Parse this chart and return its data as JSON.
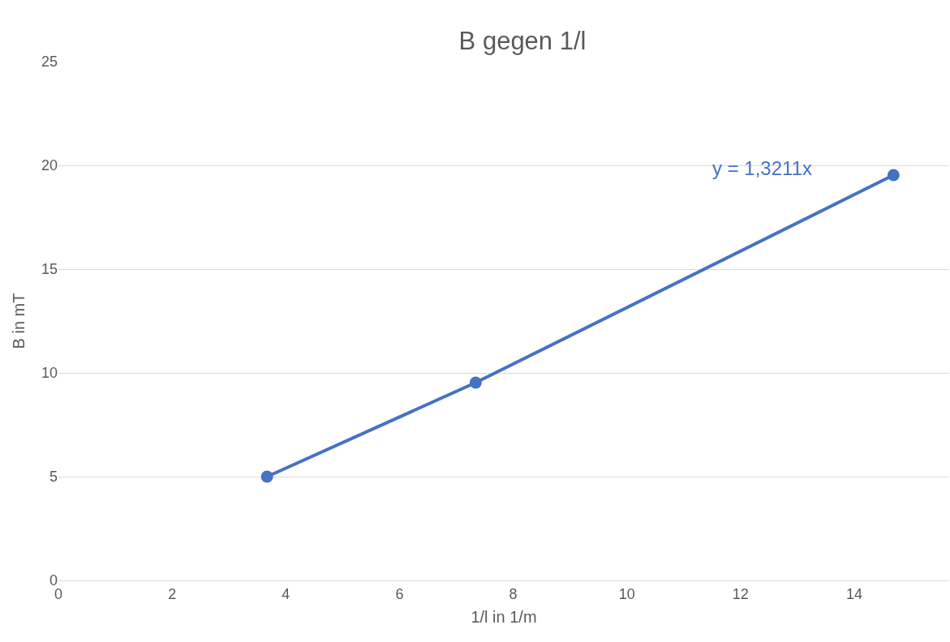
{
  "chart_data": {
    "type": "line",
    "title": "B gegen 1/l",
    "xlabel": "1/l in 1/m",
    "ylabel": "B in mT",
    "x": [
      3.67,
      7.34,
      14.69
    ],
    "series": [
      {
        "color": "#4472c4",
        "values": [
          5.0,
          9.53,
          19.53
        ]
      }
    ],
    "xlim": [
      0,
      15.67
    ],
    "xticks": [
      0,
      2,
      4,
      6,
      8,
      10,
      12,
      14
    ],
    "ylim": [
      0,
      25
    ],
    "yticks": [
      0,
      5,
      10,
      15,
      20,
      25
    ],
    "grid": "y",
    "marker": "circle",
    "line_style": "solid",
    "legend": false,
    "annotations": [
      "y = 1,3211x"
    ]
  }
}
